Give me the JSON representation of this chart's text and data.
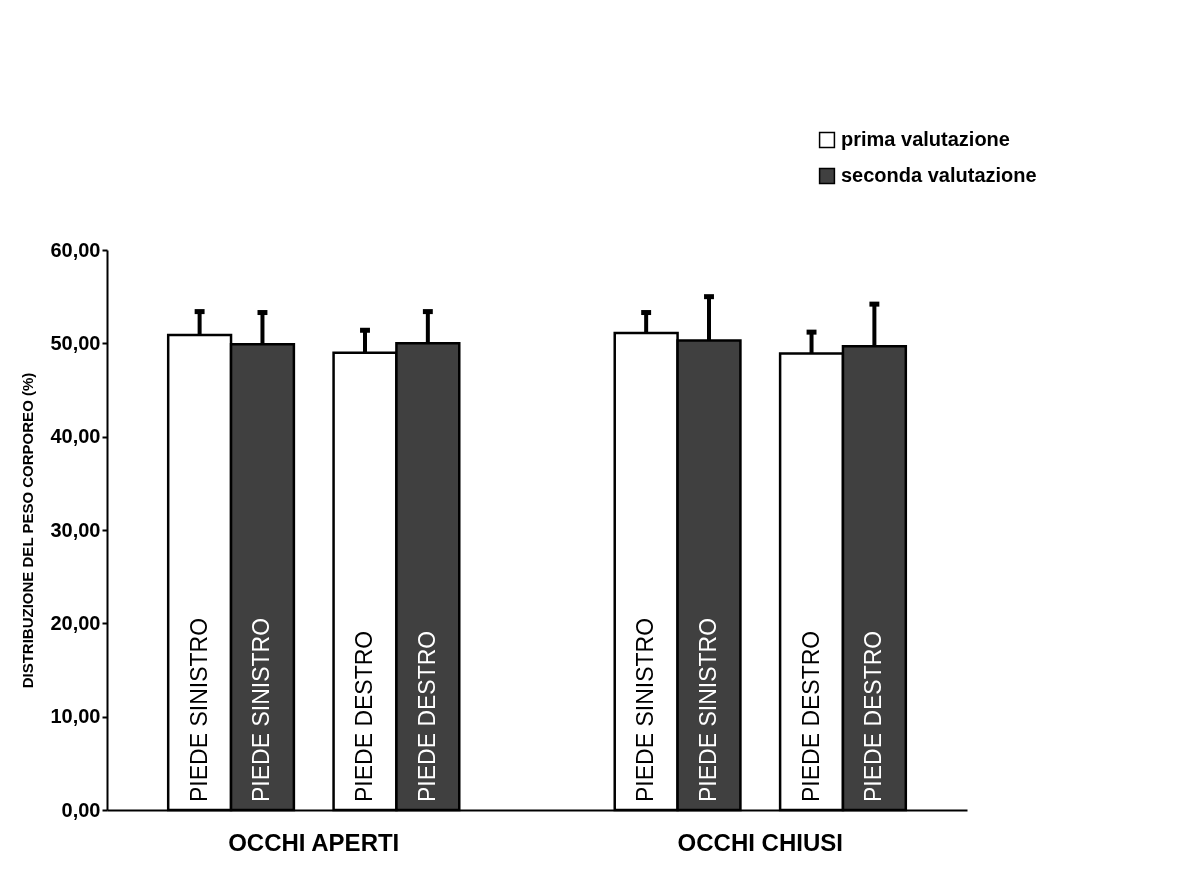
{
  "chart_data": {
    "type": "bar",
    "ylabel": "DISTRIBUZIONE DEL PESO CORPOREO (%)",
    "categories": [
      "PIEDE SINISTRO",
      "PIEDE DESTRO",
      "PIEDE SINISTRO",
      "PIEDE DESTRO"
    ],
    "series": [
      {
        "name": "prima valutazione",
        "color": "#ffffff",
        "values": [
          50.9,
          49.0,
          51.1,
          48.9
        ],
        "errors": [
          [
            50.9,
            53.4
          ],
          [
            49.0,
            51.4
          ],
          [
            51.1,
            53.3
          ],
          [
            48.9,
            51.2
          ]
        ]
      },
      {
        "name": "seconda valutazione",
        "color": "#404040",
        "values": [
          49.9,
          50.0,
          50.3,
          49.7
        ],
        "errors": [
          [
            49.9,
            53.3
          ],
          [
            50.0,
            53.4
          ],
          [
            50.3,
            55.0
          ],
          [
            49.7,
            54.2
          ]
        ]
      }
    ],
    "annotations": [
      "OCCHI APERTI",
      "OCCHI CHIUSI"
    ],
    "ylim": [
      0,
      60
    ],
    "yticks": [
      {
        "value": 0,
        "label": "0,00"
      },
      {
        "value": 10,
        "label": "10,00"
      },
      {
        "value": 20,
        "label": "20,00"
      },
      {
        "value": 30,
        "label": "30,00"
      },
      {
        "value": 40,
        "label": "40,00"
      },
      {
        "value": 50,
        "label": "50,00"
      },
      {
        "value": 60,
        "label": "60,00"
      }
    ],
    "grid": false,
    "legend": "top right"
  }
}
